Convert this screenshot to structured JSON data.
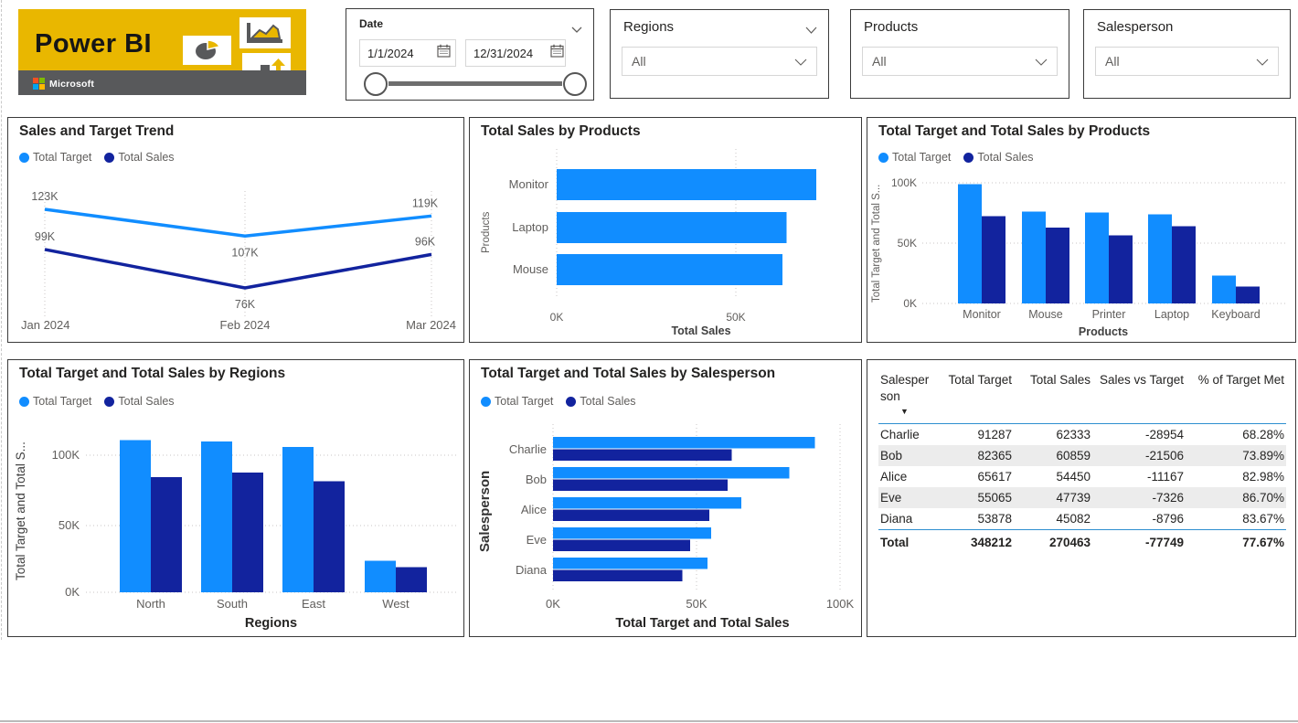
{
  "logo": {
    "title": "Power BI",
    "brand": "Microsoft"
  },
  "slicers": {
    "date": {
      "label": "Date",
      "start": "1/1/2024",
      "end": "12/31/2024"
    },
    "regions": {
      "label": "Regions",
      "value": "All"
    },
    "products": {
      "label": "Products",
      "value": "All"
    },
    "salesperson": {
      "label": "Salesperson",
      "value": "All"
    }
  },
  "colors": {
    "target": "#118DFF",
    "sales": "#12239E",
    "logo_yellow": "#E9B700",
    "logo_gray": "#58595B",
    "table_divider": "#2E8FD0",
    "row_alt": "#ececec"
  },
  "chart_data": [
    {
      "id": "trend",
      "type": "line",
      "title": "Sales and Target Trend",
      "categories": [
        "Jan 2024",
        "Feb 2024",
        "Mar 2024"
      ],
      "series": [
        {
          "name": "Total Target",
          "color": "#118DFF",
          "values": [
            123000,
            107000,
            119000
          ],
          "labels": [
            "123K",
            "107K",
            "119K"
          ]
        },
        {
          "name": "Total Sales",
          "color": "#12239E",
          "values": [
            99000,
            76000,
            96000
          ],
          "labels": [
            "99K",
            "76K",
            "96K"
          ]
        }
      ],
      "legend_position": "top",
      "grid": "vertical-dotted"
    },
    {
      "id": "sales_by_product",
      "type": "bar",
      "title": "Total Sales by Products",
      "categories": [
        "Monitor",
        "Laptop",
        "Mouse"
      ],
      "values": [
        72500,
        64200,
        63000
      ],
      "xlabel": "Total Sales",
      "ylabel": "Products",
      "x_ticks": [
        "0K",
        "50K"
      ],
      "xlim": [
        0,
        86000
      ]
    },
    {
      "id": "target_sales_by_product",
      "type": "column",
      "title": "Total Target and Total Sales by Products",
      "categories": [
        "Monitor",
        "Mouse",
        "Printer",
        "Laptop",
        "Keyboard"
      ],
      "series": [
        {
          "name": "Total Target",
          "color": "#118DFF",
          "values": [
            99000,
            76000,
            75500,
            74000,
            23000
          ]
        },
        {
          "name": "Total Sales",
          "color": "#12239E",
          "values": [
            72500,
            63000,
            56500,
            64200,
            14200
          ]
        }
      ],
      "xlabel": "Products",
      "ylabel": "Total Target and Total S...",
      "y_ticks": [
        "0K",
        "50K",
        "100K"
      ],
      "ylim": [
        0,
        105000
      ],
      "legend_position": "top"
    },
    {
      "id": "target_sales_by_region",
      "type": "column",
      "title": "Total Target and Total Sales by Regions",
      "categories": [
        "North",
        "South",
        "East",
        "West"
      ],
      "series": [
        {
          "name": "Total Target",
          "color": "#118DFF",
          "values": [
            111000,
            110000,
            106000,
            23000
          ]
        },
        {
          "name": "Total Sales",
          "color": "#12239E",
          "values": [
            84000,
            87500,
            81000,
            18500
          ]
        }
      ],
      "xlabel": "Regions",
      "ylabel": "Total Target and Total S...",
      "y_ticks": [
        "0K",
        "50K",
        "100K"
      ],
      "ylim": [
        0,
        115000
      ],
      "legend_position": "top"
    },
    {
      "id": "target_sales_by_salesperson",
      "type": "bar-clustered",
      "title": "Total Target and Total Sales by Salesperson",
      "categories": [
        "Charlie",
        "Bob",
        "Alice",
        "Eve",
        "Diana"
      ],
      "series": [
        {
          "name": "Total Target",
          "color": "#118DFF",
          "values": [
            91287,
            82365,
            65617,
            55065,
            53878
          ]
        },
        {
          "name": "Total Sales",
          "color": "#12239E",
          "values": [
            62333,
            60859,
            54450,
            47739,
            45082
          ]
        }
      ],
      "xlabel": "Total Target and Total Sales",
      "ylabel": "Salesperson",
      "x_ticks": [
        "0K",
        "50K",
        "100K"
      ],
      "xlim": [
        0,
        105000
      ],
      "legend_position": "top"
    },
    {
      "id": "salesperson_table",
      "type": "table",
      "columns": [
        "Salesperson",
        "Total Target",
        "Total Sales",
        "Sales vs Target",
        "% of Target Met"
      ],
      "sorted": {
        "column": "Salesperson",
        "direction": "desc"
      },
      "rows": [
        [
          "Charlie",
          "91287",
          "62333",
          "-28954",
          "68.28%"
        ],
        [
          "Bob",
          "82365",
          "60859",
          "-21506",
          "73.89%"
        ],
        [
          "Alice",
          "65617",
          "54450",
          "-11167",
          "82.98%"
        ],
        [
          "Eve",
          "55065",
          "47739",
          "-7326",
          "86.70%"
        ],
        [
          "Diana",
          "53878",
          "45082",
          "-8796",
          "83.67%"
        ]
      ],
      "total": [
        "Total",
        "348212",
        "270463",
        "-77749",
        "77.67%"
      ]
    }
  ]
}
